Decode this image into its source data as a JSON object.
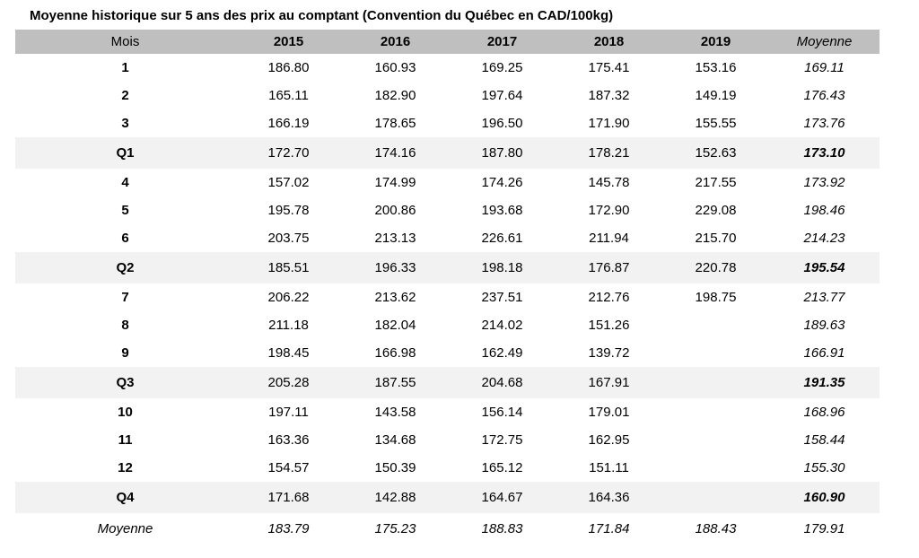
{
  "colors": {
    "header_bg": "#bfbfbf",
    "quarter_row_bg": "#f2f2f2",
    "text": "#000000",
    "page_bg": "#ffffff"
  },
  "chart_data": {
    "type": "table",
    "title": "Moyenne historique sur 5 ans des prix au comptant (Convention du Québec en CAD/100kg)",
    "columns": [
      "Mois",
      "2015",
      "2016",
      "2017",
      "2018",
      "2019",
      "Moyenne"
    ],
    "rows": [
      {
        "label": "1",
        "kind": "month",
        "values": [
          "186.80",
          "160.93",
          "169.25",
          "175.41",
          "153.16",
          "169.11"
        ]
      },
      {
        "label": "2",
        "kind": "month",
        "values": [
          "165.11",
          "182.90",
          "197.64",
          "187.32",
          "149.19",
          "176.43"
        ]
      },
      {
        "label": "3",
        "kind": "month",
        "values": [
          "166.19",
          "178.65",
          "196.50",
          "171.90",
          "155.55",
          "173.76"
        ]
      },
      {
        "label": "Q1",
        "kind": "quarter",
        "values": [
          "172.70",
          "174.16",
          "187.80",
          "178.21",
          "152.63",
          "173.10"
        ]
      },
      {
        "label": "4",
        "kind": "month",
        "values": [
          "157.02",
          "174.99",
          "174.26",
          "145.78",
          "217.55",
          "173.92"
        ]
      },
      {
        "label": "5",
        "kind": "month",
        "values": [
          "195.78",
          "200.86",
          "193.68",
          "172.90",
          "229.08",
          "198.46"
        ]
      },
      {
        "label": "6",
        "kind": "month",
        "values": [
          "203.75",
          "213.13",
          "226.61",
          "211.94",
          "215.70",
          "214.23"
        ]
      },
      {
        "label": "Q2",
        "kind": "quarter",
        "values": [
          "185.51",
          "196.33",
          "198.18",
          "176.87",
          "220.78",
          "195.54"
        ]
      },
      {
        "label": "7",
        "kind": "month",
        "values": [
          "206.22",
          "213.62",
          "237.51",
          "212.76",
          "198.75",
          "213.77"
        ]
      },
      {
        "label": "8",
        "kind": "month",
        "values": [
          "211.18",
          "182.04",
          "214.02",
          "151.26",
          "",
          "189.63"
        ]
      },
      {
        "label": "9",
        "kind": "month",
        "values": [
          "198.45",
          "166.98",
          "162.49",
          "139.72",
          "",
          "166.91"
        ]
      },
      {
        "label": "Q3",
        "kind": "quarter",
        "values": [
          "205.28",
          "187.55",
          "204.68",
          "167.91",
          "",
          "191.35"
        ]
      },
      {
        "label": "10",
        "kind": "month",
        "values": [
          "197.11",
          "143.58",
          "156.14",
          "179.01",
          "",
          "168.96"
        ]
      },
      {
        "label": "11",
        "kind": "month",
        "values": [
          "163.36",
          "134.68",
          "172.75",
          "162.95",
          "",
          "158.44"
        ]
      },
      {
        "label": "12",
        "kind": "month",
        "values": [
          "154.57",
          "150.39",
          "165.12",
          "151.11",
          "",
          "155.30"
        ]
      },
      {
        "label": "Q4",
        "kind": "quarter",
        "values": [
          "171.68",
          "142.88",
          "164.67",
          "164.36",
          "",
          "160.90"
        ]
      },
      {
        "label": "Moyenne",
        "kind": "average",
        "values": [
          "183.79",
          "175.23",
          "188.83",
          "171.84",
          "188.43",
          "179.91"
        ]
      }
    ]
  }
}
